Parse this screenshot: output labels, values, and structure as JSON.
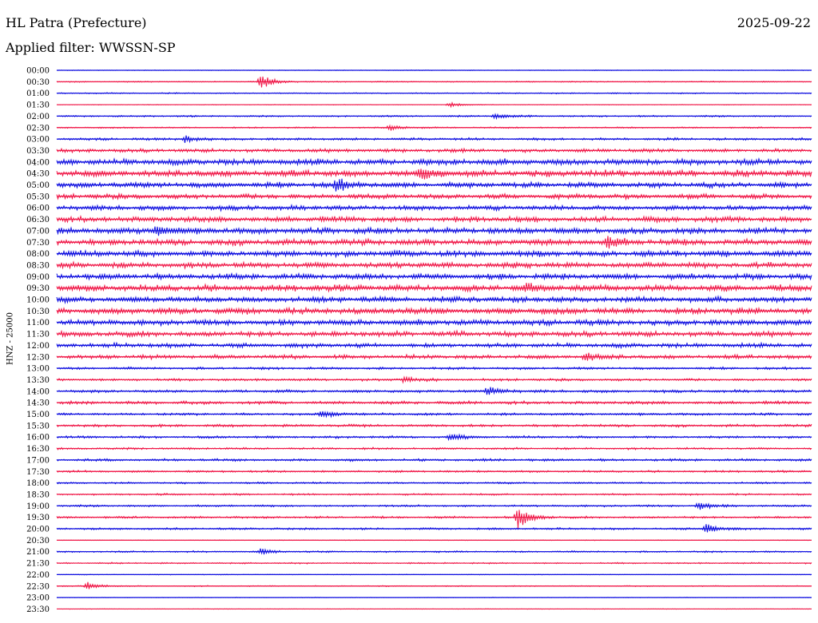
{
  "header": {
    "station": "HL Patra (Prefecture)",
    "date": "2025-09-22",
    "filter_label": "Applied filter:",
    "filter_name": "WWSSN-SP"
  },
  "channel_label": "HNZ - 25000",
  "colors": {
    "trace_a": "#1010e0",
    "trace_b": "#f01848",
    "text": "#000000",
    "background": "#ffffff"
  },
  "chart_data": {
    "type": "line",
    "title": "",
    "xlabel": "",
    "ylabel": "HNZ - 25000",
    "row_labels": [
      "00:00",
      "00:30",
      "01:00",
      "01:30",
      "02:00",
      "02:30",
      "03:00",
      "03:30",
      "04:00",
      "04:30",
      "05:00",
      "05:30",
      "06:00",
      "06:30",
      "07:00",
      "07:30",
      "08:00",
      "08:30",
      "09:00",
      "09:30",
      "10:00",
      "10:30",
      "11:00",
      "11:30",
      "12:00",
      "12:30",
      "13:00",
      "13:30",
      "14:00",
      "14:30",
      "15:00",
      "15:30",
      "16:00",
      "16:30",
      "17:00",
      "17:30",
      "18:00",
      "18:30",
      "19:00",
      "19:30",
      "20:00",
      "20:30",
      "21:00",
      "21:30",
      "22:00",
      "22:30",
      "23:00",
      "23:30"
    ],
    "row_noise_level": [
      0.3,
      0.5,
      0.6,
      0.3,
      0.8,
      0.7,
      1.2,
      1.8,
      3.0,
      3.2,
      2.6,
      2.4,
      2.4,
      2.8,
      3.0,
      3.0,
      3.0,
      2.8,
      2.8,
      3.2,
      2.8,
      3.2,
      2.8,
      2.6,
      2.2,
      2.0,
      1.2,
      1.2,
      1.4,
      1.6,
      1.2,
      1.3,
      1.2,
      1.0,
      1.2,
      1.0,
      0.9,
      0.9,
      1.0,
      1.0,
      1.0,
      0.3,
      0.8,
      0.7,
      0.3,
      0.5,
      0.3,
      0.2
    ],
    "events": [
      {
        "row": "00:30",
        "t": 0.27,
        "amp": 9
      },
      {
        "row": "01:30",
        "t": 0.52,
        "amp": 3
      },
      {
        "row": "02:00",
        "t": 0.58,
        "amp": 3
      },
      {
        "row": "02:30",
        "t": 0.44,
        "amp": 4
      },
      {
        "row": "03:00",
        "t": 0.17,
        "amp": 4
      },
      {
        "row": "04:30",
        "t": 0.48,
        "amp": 7
      },
      {
        "row": "05:00",
        "t": 0.37,
        "amp": 7
      },
      {
        "row": "07:00",
        "t": 0.13,
        "amp": 6
      },
      {
        "row": "07:30",
        "t": 0.73,
        "amp": 6
      },
      {
        "row": "09:30",
        "t": 0.62,
        "amp": 6
      },
      {
        "row": "12:30",
        "t": 0.7,
        "amp": 5
      },
      {
        "row": "13:30",
        "t": 0.46,
        "amp": 4
      },
      {
        "row": "14:00",
        "t": 0.57,
        "amp": 6
      },
      {
        "row": "15:00",
        "t": 0.35,
        "amp": 5
      },
      {
        "row": "16:00",
        "t": 0.52,
        "amp": 4
      },
      {
        "row": "19:00",
        "t": 0.85,
        "amp": 5
      },
      {
        "row": "19:30",
        "t": 0.61,
        "amp": 14
      },
      {
        "row": "20:00",
        "t": 0.86,
        "amp": 6
      },
      {
        "row": "21:00",
        "t": 0.27,
        "amp": 4
      },
      {
        "row": "22:30",
        "t": 0.04,
        "amp": 5
      }
    ]
  }
}
